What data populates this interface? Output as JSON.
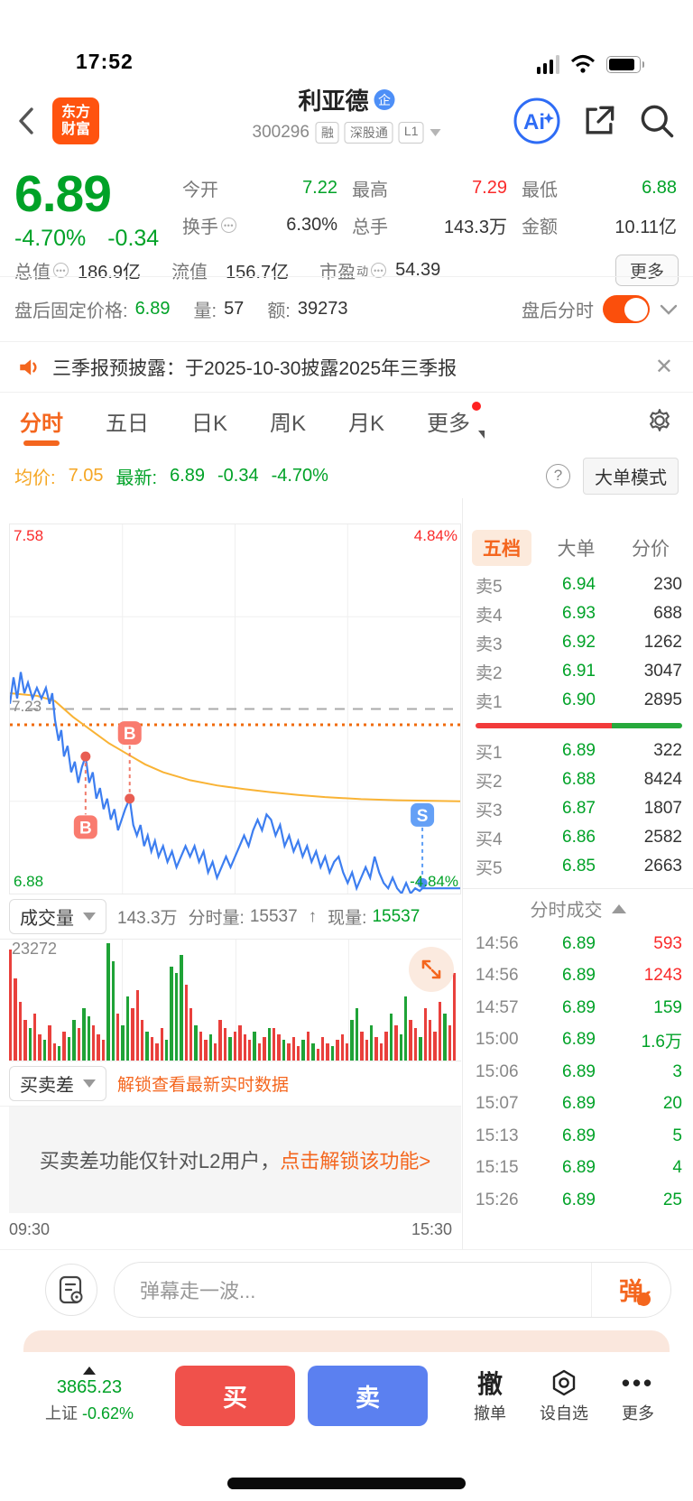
{
  "colors": {
    "green": "#00A227",
    "red": "#FA2A2A",
    "orange_accent": "#F4661E",
    "avg_orange": "#F5A623",
    "price_line_blue": "#3D7EF0",
    "avg_line_yellow": "#F9B335",
    "logo_orange": "#FF530F",
    "buy_btn": "#F0514B",
    "sell_btn": "#5B80F0",
    "toggle_on": "#FB4F0C"
  },
  "status_bar": {
    "time": "17:52"
  },
  "header": {
    "logo_line1": "东方",
    "logo_line2": "财富",
    "title": "利亚德",
    "corp_badge": "企",
    "code": "300296",
    "tags": [
      "融",
      "深股通",
      "L1"
    ],
    "ai_label": "Ai"
  },
  "quote": {
    "price": "6.89",
    "change_pct": "-4.70%",
    "change": "-0.34",
    "open_label": "今开",
    "open": "7.22",
    "high_label": "最高",
    "high": "7.29",
    "low_label": "最低",
    "low": "6.88",
    "turnover_label": "换手",
    "turnover": "6.30%",
    "volume_label": "总手",
    "volume": "143.3万",
    "amount_label": "金额",
    "amount": "10.11亿",
    "mcap_label": "总值",
    "mcap": "186.9亿",
    "float_label": "流值",
    "float_val": "156.7亿",
    "pe_label": "市盈",
    "pe_sup": "动",
    "pe": "54.39",
    "more_label": "更多"
  },
  "after_hours": {
    "label": "盘后固定价格:",
    "price": "6.89",
    "vol_label": "量:",
    "vol": "57",
    "amt_label": "额:",
    "amt": "39273",
    "toggle_label": "盘后分时"
  },
  "announcement": {
    "text": "三季报预披露：于2025-10-30披露2025年三季报"
  },
  "tabs": {
    "items": [
      {
        "label": "分时",
        "active": true
      },
      {
        "label": "五日"
      },
      {
        "label": "日K"
      },
      {
        "label": "周K"
      },
      {
        "label": "月K"
      },
      {
        "label": "更多",
        "dot": true,
        "dropdown": true
      }
    ]
  },
  "avg_row": {
    "avg_label": "均价:",
    "avg": "7.05",
    "last_label": "最新:",
    "last": "6.89",
    "change": "-0.34",
    "change_pct": "-4.70%",
    "mode_btn": "大单模式"
  },
  "chart_data": [
    {
      "type": "line",
      "title": "分时走势",
      "prev_close": 7.23,
      "y_range": [
        6.88,
        7.58
      ],
      "pct_range": [
        "-4.84%",
        "4.84%"
      ],
      "label_high": "7.58",
      "label_mid": "7.23",
      "label_low": "6.88",
      "label_pct_high": "4.84%",
      "label_pct_low": "-4.84%",
      "x_start": "09:30",
      "x_end": "15:30",
      "grid": true,
      "dotted_orange_level": 7.2,
      "series": [
        {
          "name": "price",
          "color": "#3D7EF0",
          "points": [
            [
              0,
              7.24
            ],
            [
              0.8,
              7.29
            ],
            [
              1.6,
              7.25
            ],
            [
              2.4,
              7.3
            ],
            [
              3.2,
              7.26
            ],
            [
              4,
              7.28
            ],
            [
              5,
              7.25
            ],
            [
              6,
              7.27
            ],
            [
              7,
              7.25
            ],
            [
              8,
              7.27
            ],
            [
              8.8,
              7.24
            ],
            [
              9.4,
              7.26
            ],
            [
              10,
              7.21
            ],
            [
              10.8,
              7.17
            ],
            [
              11.4,
              7.19
            ],
            [
              12,
              7.14
            ],
            [
              12.8,
              7.16
            ],
            [
              13.6,
              7.11
            ],
            [
              14.4,
              7.13
            ],
            [
              15.2,
              7.09
            ],
            [
              16,
              7.12
            ],
            [
              16.8,
              7.14
            ],
            [
              17.6,
              7.09
            ],
            [
              18.4,
              7.11
            ],
            [
              19.2,
              7.06
            ],
            [
              20,
              7.08
            ],
            [
              20.8,
              7.04
            ],
            [
              21.6,
              7.06
            ],
            [
              22.4,
              7.02
            ],
            [
              23.2,
              7.04
            ],
            [
              24,
              7.0
            ],
            [
              24.8,
              7.02
            ],
            [
              25.6,
              7.04
            ],
            [
              26.6,
              7.06
            ],
            [
              27.4,
              7.01
            ],
            [
              28.2,
              6.99
            ],
            [
              29,
              7.01
            ],
            [
              29.8,
              6.97
            ],
            [
              30.6,
              6.99
            ],
            [
              31.4,
              6.96
            ],
            [
              32.2,
              6.98
            ],
            [
              33,
              6.95
            ],
            [
              34,
              6.97
            ],
            [
              35,
              6.94
            ],
            [
              36,
              6.96
            ],
            [
              37,
              6.93
            ],
            [
              38,
              6.95
            ],
            [
              39,
              6.97
            ],
            [
              40,
              6.95
            ],
            [
              41,
              6.97
            ],
            [
              42,
              6.94
            ],
            [
              43,
              6.96
            ],
            [
              44,
              6.92
            ],
            [
              45,
              6.94
            ],
            [
              46,
              6.91
            ],
            [
              47,
              6.93
            ],
            [
              48,
              6.95
            ],
            [
              49,
              6.93
            ],
            [
              50,
              6.95
            ],
            [
              51,
              6.97
            ],
            [
              52,
              6.99
            ],
            [
              53,
              6.97
            ],
            [
              54,
              7.0
            ],
            [
              55,
              7.02
            ],
            [
              56,
              7.0
            ],
            [
              57,
              7.03
            ],
            [
              58,
              7.02
            ],
            [
              59,
              6.99
            ],
            [
              60,
              7.01
            ],
            [
              61,
              6.97
            ],
            [
              62,
              6.99
            ],
            [
              63,
              6.96
            ],
            [
              64,
              6.98
            ],
            [
              65,
              6.95
            ],
            [
              66,
              6.97
            ],
            [
              67,
              6.94
            ],
            [
              68,
              6.96
            ],
            [
              69,
              6.93
            ],
            [
              70,
              6.95
            ],
            [
              71,
              6.92
            ],
            [
              72,
              6.94
            ],
            [
              73,
              6.95
            ],
            [
              74,
              6.92
            ],
            [
              75,
              6.9
            ],
            [
              76,
              6.92
            ],
            [
              77,
              6.89
            ],
            [
              78,
              6.91
            ],
            [
              79,
              6.93
            ],
            [
              80,
              6.91
            ],
            [
              81,
              6.95
            ],
            [
              82,
              6.92
            ],
            [
              83,
              6.9
            ],
            [
              84,
              6.89
            ],
            [
              85,
              6.91
            ],
            [
              86,
              6.89
            ],
            [
              87,
              6.88
            ],
            [
              88,
              6.9
            ],
            [
              89,
              6.88
            ],
            [
              90,
              6.89
            ],
            [
              91,
              6.885
            ],
            [
              91.6,
              6.89
            ],
            [
              94,
              6.89
            ],
            [
              100,
              6.89
            ]
          ]
        },
        {
          "name": "avg",
          "color": "#F9B335",
          "points": [
            [
              0,
              7.26
            ],
            [
              6,
              7.255
            ],
            [
              10,
              7.245
            ],
            [
              14,
              7.215
            ],
            [
              18,
              7.19
            ],
            [
              22,
              7.165
            ],
            [
              26,
              7.145
            ],
            [
              30,
              7.125
            ],
            [
              34,
              7.11
            ],
            [
              40,
              7.095
            ],
            [
              46,
              7.085
            ],
            [
              52,
              7.078
            ],
            [
              58,
              7.072
            ],
            [
              64,
              7.067
            ],
            [
              70,
              7.063
            ],
            [
              78,
              7.059
            ],
            [
              86,
              7.057
            ],
            [
              100,
              7.055
            ]
          ]
        }
      ],
      "markers": [
        {
          "type": "B",
          "x": 16.8,
          "dot_price": 7.14,
          "badge_y_pct": 82
        },
        {
          "type": "B",
          "x": 26.6,
          "dot_price": 7.06,
          "badge_y_pct": 56.5
        },
        {
          "type": "S",
          "x": 91.6,
          "dot_price": 6.9,
          "badge_y_pct": 78.7
        }
      ]
    },
    {
      "type": "bar",
      "title": "成交量",
      "max_label": "23272",
      "bars": [
        [
          95,
          "r"
        ],
        [
          70,
          "r"
        ],
        [
          50,
          "r"
        ],
        [
          35,
          "r"
        ],
        [
          28,
          "g"
        ],
        [
          40,
          "r"
        ],
        [
          22,
          "r"
        ],
        [
          18,
          "g"
        ],
        [
          30,
          "r"
        ],
        [
          15,
          "r"
        ],
        [
          12,
          "g"
        ],
        [
          25,
          "r"
        ],
        [
          20,
          "g"
        ],
        [
          35,
          "g"
        ],
        [
          28,
          "r"
        ],
        [
          45,
          "g"
        ],
        [
          38,
          "g"
        ],
        [
          30,
          "r"
        ],
        [
          22,
          "r"
        ],
        [
          18,
          "r"
        ],
        [
          100,
          "g"
        ],
        [
          85,
          "g"
        ],
        [
          40,
          "r"
        ],
        [
          30,
          "g"
        ],
        [
          55,
          "g"
        ],
        [
          45,
          "r"
        ],
        [
          60,
          "r"
        ],
        [
          35,
          "r"
        ],
        [
          25,
          "g"
        ],
        [
          20,
          "r"
        ],
        [
          15,
          "r"
        ],
        [
          28,
          "r"
        ],
        [
          18,
          "g"
        ],
        [
          80,
          "g"
        ],
        [
          75,
          "g"
        ],
        [
          90,
          "g"
        ],
        [
          65,
          "r"
        ],
        [
          45,
          "r"
        ],
        [
          30,
          "g"
        ],
        [
          25,
          "r"
        ],
        [
          18,
          "r"
        ],
        [
          22,
          "g"
        ],
        [
          15,
          "r"
        ],
        [
          35,
          "r"
        ],
        [
          28,
          "r"
        ],
        [
          20,
          "g"
        ],
        [
          25,
          "r"
        ],
        [
          30,
          "r"
        ],
        [
          22,
          "r"
        ],
        [
          18,
          "r"
        ],
        [
          25,
          "g"
        ],
        [
          15,
          "r"
        ],
        [
          20,
          "r"
        ],
        [
          28,
          "g"
        ],
        [
          28,
          "r"
        ],
        [
          22,
          "r"
        ],
        [
          18,
          "g"
        ],
        [
          15,
          "r"
        ],
        [
          20,
          "r"
        ],
        [
          12,
          "r"
        ],
        [
          18,
          "g"
        ],
        [
          25,
          "r"
        ],
        [
          15,
          "g"
        ],
        [
          10,
          "r"
        ],
        [
          20,
          "r"
        ],
        [
          15,
          "r"
        ],
        [
          12,
          "g"
        ],
        [
          18,
          "r"
        ],
        [
          22,
          "r"
        ],
        [
          15,
          "r"
        ],
        [
          35,
          "g"
        ],
        [
          45,
          "g"
        ],
        [
          25,
          "r"
        ],
        [
          18,
          "r"
        ],
        [
          30,
          "g"
        ],
        [
          20,
          "r"
        ],
        [
          15,
          "r"
        ],
        [
          25,
          "r"
        ],
        [
          40,
          "g"
        ],
        [
          30,
          "r"
        ],
        [
          22,
          "g"
        ],
        [
          55,
          "g"
        ],
        [
          35,
          "r"
        ],
        [
          28,
          "r"
        ],
        [
          20,
          "g"
        ],
        [
          45,
          "r"
        ],
        [
          35,
          "r"
        ],
        [
          25,
          "r"
        ],
        [
          50,
          "r"
        ],
        [
          40,
          "g"
        ],
        [
          30,
          "r"
        ],
        [
          75,
          "r"
        ]
      ]
    }
  ],
  "order_book": {
    "tabs": [
      "五档",
      "大单",
      "分价"
    ],
    "active_tab": "五档",
    "asks": [
      {
        "label": "卖5",
        "price": "6.94",
        "vol": "230"
      },
      {
        "label": "卖4",
        "price": "6.93",
        "vol": "688"
      },
      {
        "label": "卖3",
        "price": "6.92",
        "vol": "1262"
      },
      {
        "label": "卖2",
        "price": "6.91",
        "vol": "3047"
      },
      {
        "label": "卖1",
        "price": "6.90",
        "vol": "2895"
      }
    ],
    "bids": [
      {
        "label": "买1",
        "price": "6.89",
        "vol": "322"
      },
      {
        "label": "买2",
        "price": "6.88",
        "vol": "8424"
      },
      {
        "label": "买3",
        "price": "6.87",
        "vol": "1807"
      },
      {
        "label": "买4",
        "price": "6.86",
        "vol": "2582"
      },
      {
        "label": "买5",
        "price": "6.85",
        "vol": "2663"
      }
    ],
    "strength": {
      "red": 66,
      "green": 34
    }
  },
  "ticks": {
    "title": "分时成交",
    "rows": [
      {
        "t": "14:56",
        "p": "6.89",
        "v": "593",
        "c": "r"
      },
      {
        "t": "14:56",
        "p": "6.89",
        "v": "1243",
        "c": "r"
      },
      {
        "t": "14:57",
        "p": "6.89",
        "v": "159",
        "c": "g"
      },
      {
        "t": "15:00",
        "p": "6.89",
        "v": "1.6万",
        "c": "g"
      },
      {
        "t": "15:06",
        "p": "6.89",
        "v": "3",
        "c": "g"
      },
      {
        "t": "15:07",
        "p": "6.89",
        "v": "20",
        "c": "g"
      },
      {
        "t": "15:13",
        "p": "6.89",
        "v": "5",
        "c": "g"
      },
      {
        "t": "15:15",
        "p": "6.89",
        "v": "4",
        "c": "g"
      },
      {
        "t": "15:26",
        "p": "6.89",
        "v": "25",
        "c": "g"
      }
    ]
  },
  "volume_section": {
    "name": "成交量",
    "total": "143.3万",
    "min_label": "分时量:",
    "min_vol": "15537",
    "arrow": "↑",
    "cur_label": "现量:",
    "cur_vol": "15537"
  },
  "buysell": {
    "name": "买卖差",
    "link": "解锁查看最新实时数据",
    "l2_text": "买卖差功能仅针对L2用户，",
    "l2_link": "点击解锁该功能>"
  },
  "time_axis": {
    "start": "09:30",
    "end": "15:30"
  },
  "comment": {
    "placeholder": "弹幕走一波...",
    "send": "弹",
    "check": "✓"
  },
  "bottom_bar": {
    "index_value": "3865.23",
    "index_name": "上证",
    "index_change": "-0.62%",
    "buy": "买",
    "sell": "卖",
    "cancel_icon": "撤",
    "cancel": "撤单",
    "watch": "设自选",
    "more": "更多"
  }
}
